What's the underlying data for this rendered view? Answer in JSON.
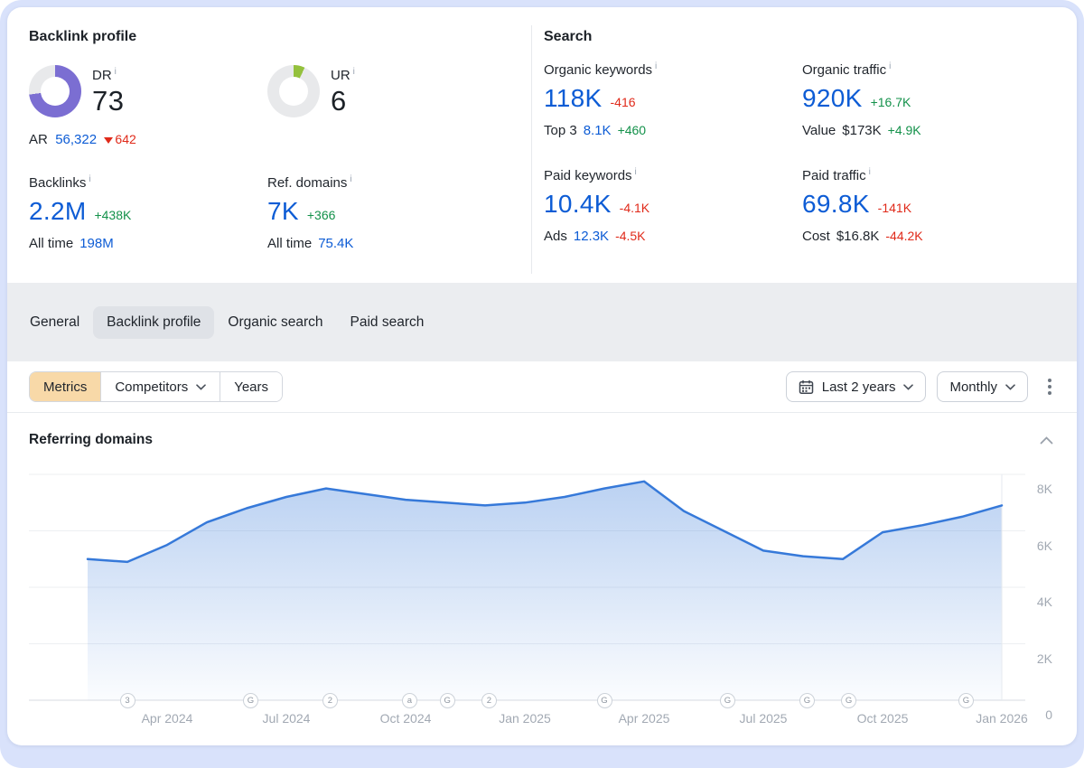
{
  "colors": {
    "value_blue": "#0d5cd5",
    "positive_green": "#13914a",
    "negative_red": "#e02a1a",
    "dr_purple": "#7b6ed2",
    "ur_lime": "#94c13d",
    "metrics_accent": "#f8d9a8",
    "chart_line_blue": "#3679d9"
  },
  "ui": {
    "info_glyph": "i"
  },
  "backlink_profile": {
    "title": "Backlink profile",
    "dr": {
      "label": "DR",
      "value": "73",
      "percent": 73
    },
    "ur": {
      "label": "UR",
      "value": "6",
      "percent": 7
    },
    "ar": {
      "prefix": "AR",
      "value": "56,322",
      "delta": "642"
    },
    "backlinks": {
      "label": "Backlinks",
      "value": "2.2M",
      "delta": "+438K",
      "all_time_label": "All time",
      "all_time_value": "198M"
    },
    "ref_domains": {
      "label": "Ref. domains",
      "value": "7K",
      "delta": "+366",
      "all_time_label": "All time",
      "all_time_value": "75.4K"
    }
  },
  "search": {
    "title": "Search",
    "organic_keywords": {
      "label": "Organic keywords",
      "value": "118K",
      "delta": "-416",
      "sub_label": "Top 3",
      "sub_value": "8.1K",
      "sub_delta": "+460"
    },
    "organic_traffic": {
      "label": "Organic traffic",
      "value": "920K",
      "delta": "+16.7K",
      "sub_label": "Value",
      "sub_value": "$173K",
      "sub_delta": "+4.9K"
    },
    "paid_keywords": {
      "label": "Paid keywords",
      "value": "10.4K",
      "delta": "-4.1K",
      "sub_label": "Ads",
      "sub_value": "12.3K",
      "sub_delta": "-4.5K"
    },
    "paid_traffic": {
      "label": "Paid traffic",
      "value": "69.8K",
      "delta": "-141K",
      "sub_label": "Cost",
      "sub_value": "$16.8K",
      "sub_delta": "-44.2K"
    }
  },
  "tabs": {
    "general": "General",
    "backlink_profile": "Backlink profile",
    "organic_search": "Organic search",
    "paid_search": "Paid search",
    "selected": "Backlink profile"
  },
  "controls": {
    "metrics": "Metrics",
    "competitors": "Competitors",
    "years": "Years",
    "date_range": "Last 2 years",
    "granularity": "Monthly"
  },
  "chart": {
    "title": "Referring domains"
  },
  "chart_data": {
    "type": "area",
    "title": "Referring domains",
    "x": [
      "Feb 2024",
      "Mar 2024",
      "Apr 2024",
      "May 2024",
      "Jun 2024",
      "Jul 2024",
      "Aug 2024",
      "Sep 2024",
      "Oct 2024",
      "Nov 2024",
      "Dec 2024",
      "Jan 2025",
      "Feb 2025",
      "Mar 2025",
      "Apr 2025",
      "May 2025",
      "Jun 2025",
      "Jul 2025",
      "Aug 2025",
      "Sep 2025",
      "Oct 2025",
      "Nov 2025",
      "Dec 2025",
      "Jan 2026"
    ],
    "values": [
      5000,
      4900,
      5500,
      6300,
      6800,
      7200,
      7500,
      7300,
      7100,
      7000,
      6900,
      7000,
      7200,
      7500,
      7750,
      6700,
      6000,
      5300,
      5100,
      5000,
      5950,
      6200,
      6500,
      6900
    ],
    "ylim": [
      0,
      8000
    ],
    "yticks": [
      {
        "value": 8000,
        "label": "8K"
      },
      {
        "value": 6000,
        "label": "6K"
      },
      {
        "value": 4000,
        "label": "4K"
      },
      {
        "value": 2000,
        "label": "2K"
      },
      {
        "value": 0,
        "label": "0"
      }
    ],
    "xticks": [
      {
        "index": 2,
        "label": "Apr 2024"
      },
      {
        "index": 5,
        "label": "Jul 2024"
      },
      {
        "index": 8,
        "label": "Oct 2024"
      },
      {
        "index": 11,
        "label": "Jan 2025"
      },
      {
        "index": 14,
        "label": "Apr 2025"
      },
      {
        "index": 17,
        "label": "Jul 2025"
      },
      {
        "index": 20,
        "label": "Oct 2025"
      },
      {
        "index": 23,
        "label": "Jan 2026"
      }
    ],
    "events": [
      {
        "index": 1,
        "glyph": "3"
      },
      {
        "index": 4.1,
        "glyph": "G"
      },
      {
        "index": 6.1,
        "glyph": "2"
      },
      {
        "index": 8.1,
        "glyph": "a"
      },
      {
        "index": 9.05,
        "glyph": "G"
      },
      {
        "index": 10.1,
        "glyph": "2"
      },
      {
        "index": 13,
        "glyph": "G"
      },
      {
        "index": 16.1,
        "glyph": "G"
      },
      {
        "index": 18.1,
        "glyph": "G"
      },
      {
        "index": 19.15,
        "glyph": "G"
      },
      {
        "index": 22.1,
        "glyph": "G"
      }
    ],
    "grid": true,
    "legend_position": "none",
    "ylabel": "",
    "xlabel": ""
  }
}
